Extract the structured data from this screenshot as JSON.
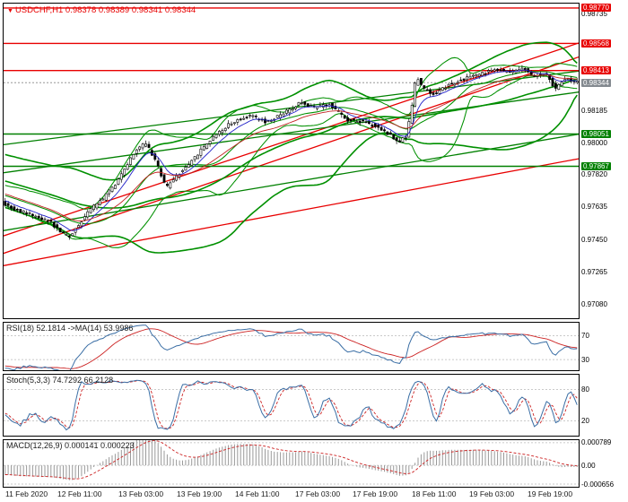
{
  "app": {
    "title_symbol": "USDCHF,H1",
    "title_ohlc": "0.98378 0.98389 0.98341 0.98344"
  },
  "colors": {
    "chart_red": "#e80000",
    "chart_green": "#008000",
    "band_green": "#009000",
    "ema_fast": "#2222c8",
    "ema_slow": "#c22222",
    "candle_up": "#ffffff",
    "candle_down": "#000000",
    "candle_border": "#000000",
    "current_line": "#888888",
    "rsi_line": "#3a6ea5",
    "rsi_ma": "#cc2222",
    "stoch_k": "#3a6ea5",
    "stoch_d": "#cc2222",
    "macd_hist": "#9a9a9a",
    "macd_signal": "#cc2222",
    "level_dash": "#b8b8b8",
    "badge_gray": "#848a90",
    "title_red": "#e80000"
  },
  "chart_data": {
    "type": "candlestick",
    "symbol": "USDCHF",
    "timeframe": "H1",
    "ohlc_display": {
      "open": "0.98378",
      "high": "0.98389",
      "low": "0.98341",
      "close": "0.98344"
    },
    "y_domain": [
      0.97,
      0.98795
    ],
    "candle_count": 188,
    "seed": 11,
    "jitter": 9e-05,
    "wick": 0.0002,
    "warmup": {
      "count": 70,
      "start_price": 0.9799
    },
    "price_anchors": [
      [
        0.0,
        0.9766
      ],
      [
        0.02,
        0.97625
      ],
      [
        0.05,
        0.9759
      ],
      [
        0.08,
        0.9756
      ],
      [
        0.1,
        0.975
      ],
      [
        0.115,
        0.97465
      ],
      [
        0.13,
        0.9752
      ],
      [
        0.15,
        0.9761
      ],
      [
        0.175,
        0.9768
      ],
      [
        0.2,
        0.9778
      ],
      [
        0.23,
        0.9795
      ],
      [
        0.25,
        0.98
      ],
      [
        0.268,
        0.9789
      ],
      [
        0.285,
        0.9774
      ],
      [
        0.3,
        0.978
      ],
      [
        0.33,
        0.979
      ],
      [
        0.36,
        0.9801
      ],
      [
        0.395,
        0.9811
      ],
      [
        0.43,
        0.9816
      ],
      [
        0.46,
        0.9812
      ],
      [
        0.49,
        0.9817
      ],
      [
        0.52,
        0.9823
      ],
      [
        0.545,
        0.982
      ],
      [
        0.57,
        0.9822
      ],
      [
        0.6,
        0.9813
      ],
      [
        0.63,
        0.9812
      ],
      [
        0.66,
        0.9808
      ],
      [
        0.69,
        0.9801
      ],
      [
        0.703,
        0.9803
      ],
      [
        0.712,
        0.982
      ],
      [
        0.72,
        0.9838
      ],
      [
        0.735,
        0.983
      ],
      [
        0.755,
        0.9828
      ],
      [
        0.775,
        0.9833
      ],
      [
        0.8,
        0.9836
      ],
      [
        0.83,
        0.9839
      ],
      [
        0.86,
        0.9842
      ],
      [
        0.885,
        0.984
      ],
      [
        0.905,
        0.9843
      ],
      [
        0.925,
        0.9838
      ],
      [
        0.945,
        0.984
      ],
      [
        0.962,
        0.9831
      ],
      [
        0.978,
        0.9837
      ],
      [
        1.0,
        0.98344
      ]
    ],
    "horizontal_lines": [
      {
        "price": 0.9877,
        "color": "red",
        "label": "0.98770"
      },
      {
        "price": 0.98568,
        "color": "red",
        "label": "0.98568"
      },
      {
        "price": 0.98413,
        "color": "red",
        "label": "0.98413"
      },
      {
        "price": 0.98051,
        "color": "green",
        "label": "0.98051"
      },
      {
        "price": 0.97867,
        "color": "green",
        "label": "0.97867"
      }
    ],
    "current_price": {
      "price": 0.98344,
      "label": "0.98344"
    },
    "trendlines": [
      {
        "color": "red",
        "p1": 0.9747,
        "p2": 0.9857
      },
      {
        "color": "red",
        "p1": 0.9737,
        "p2": 0.9849
      },
      {
        "color": "red",
        "p1": 0.973,
        "p2": 0.9791
      },
      {
        "color": "green",
        "p1": 0.9799,
        "p2": 0.9841
      },
      {
        "color": "green",
        "p1": 0.9783,
        "p2": 0.9829
      },
      {
        "color": "green",
        "p1": 0.975,
        "p2": 0.9805
      }
    ],
    "axis_ticks": [
      {
        "price": 0.98735,
        "label": "0.98735"
      },
      {
        "price": 0.98185,
        "label": "0.98185"
      },
      {
        "price": 0.98,
        "label": "0.98000"
      },
      {
        "price": 0.9782,
        "label": "0.97820"
      },
      {
        "price": 0.97635,
        "label": "0.97635"
      },
      {
        "price": 0.9745,
        "label": "0.97450"
      },
      {
        "price": 0.97265,
        "label": "0.97265"
      },
      {
        "price": 0.9708,
        "label": "0.97080"
      }
    ],
    "overlays": {
      "bb_fast": {
        "period": 20,
        "dev": 2
      },
      "bb_slow": {
        "period": 55,
        "dev": 2
      },
      "ema_fast": 8,
      "ema_slow": 24
    },
    "indicators": {
      "rsi": {
        "label": "RSI(18) 52.1814 ->MA(14) 53.9986",
        "period": 18,
        "ma_period": 14,
        "levels": [
          {
            "v": 70,
            "label": "70"
          },
          {
            "v": 30,
            "label": "30"
          }
        ],
        "domain": [
          12,
          92
        ]
      },
      "stoch": {
        "label": "Stoch(5,3,3) 74.7292 66.2128",
        "k": 5,
        "slowing": 3,
        "d": 3,
        "levels": [
          {
            "v": 80,
            "label": "80"
          },
          {
            "v": 20,
            "label": "20"
          }
        ],
        "domain": [
          -8,
          108
        ]
      },
      "macd": {
        "label": "MACD(12,26,9) 0.000141 0.000223",
        "fast": 12,
        "slow": 26,
        "signal": 9,
        "levels": [
          {
            "v": 0.000789,
            "label": "0.000789"
          },
          {
            "v": 0,
            "label": "0.00"
          },
          {
            "v": -0.000656,
            "label": "-0.000656"
          }
        ],
        "domain": [
          -0.00075,
          0.00088
        ]
      }
    },
    "time_labels": [
      {
        "t": 0.004,
        "text": "11 Feb 2020"
      },
      {
        "t": 0.095,
        "text": "12 Feb 11:00"
      },
      {
        "t": 0.202,
        "text": "13 Feb 03:00"
      },
      {
        "t": 0.303,
        "text": "13 Feb 19:00"
      },
      {
        "t": 0.404,
        "text": "14 Feb 11:00"
      },
      {
        "t": 0.508,
        "text": "17 Feb 03:00"
      },
      {
        "t": 0.609,
        "text": "17 Feb 19:00"
      },
      {
        "t": 0.711,
        "text": "18 Feb 11:00"
      },
      {
        "t": 0.812,
        "text": "19 Feb 03:00"
      },
      {
        "t": 0.913,
        "text": "19 Feb 19:00"
      }
    ]
  }
}
